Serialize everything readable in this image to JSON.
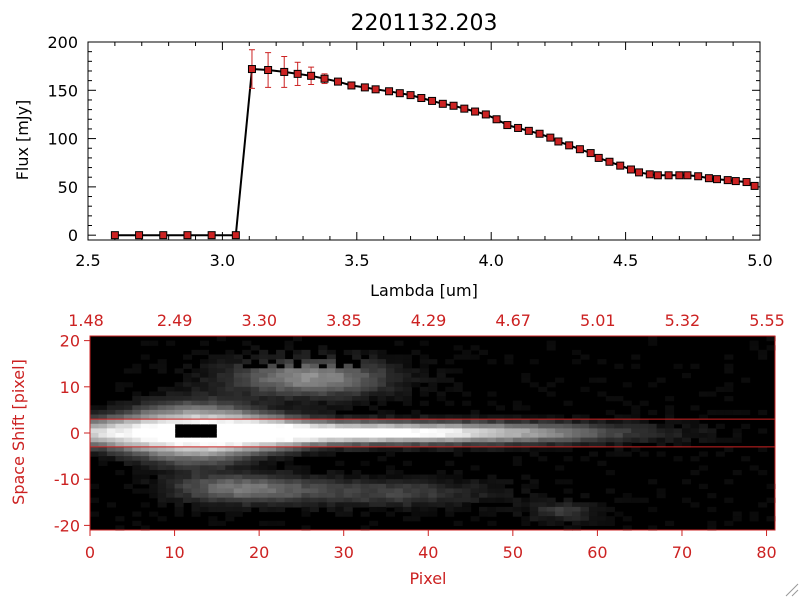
{
  "chart_data": [
    {
      "type": "line",
      "title": "2201132.203",
      "xlabel": "Lambda [um]",
      "ylabel": "Flux [mJy]",
      "xlim": [
        2.5,
        5.0
      ],
      "ylim": [
        -5,
        200
      ],
      "xticks": [
        "2.5",
        "3.0",
        "3.5",
        "4.0",
        "4.5",
        "5.0"
      ],
      "yticks": [
        "0",
        "50",
        "100",
        "150",
        "200"
      ],
      "line_color": "#000000",
      "marker_color": "#cc2222",
      "series": [
        {
          "x": [
            2.6,
            2.69,
            2.78,
            2.87,
            2.96,
            3.05,
            3.11,
            3.17,
            3.23,
            3.28,
            3.33,
            3.38,
            3.43,
            3.48,
            3.53,
            3.57,
            3.62,
            3.66,
            3.7,
            3.74,
            3.78,
            3.82,
            3.86,
            3.9,
            3.94,
            3.98,
            4.02,
            4.06,
            4.1,
            4.14,
            4.18,
            4.22,
            4.25,
            4.29,
            4.33,
            4.37,
            4.4,
            4.44,
            4.48,
            4.52,
            4.55,
            4.59,
            4.62,
            4.66,
            4.7,
            4.73,
            4.77,
            4.81,
            4.84,
            4.88,
            4.91,
            4.95,
            4.98
          ],
          "y": [
            0,
            0,
            0,
            0,
            0,
            0,
            172,
            171,
            169,
            167,
            165,
            162,
            159,
            155,
            153,
            151,
            149,
            147,
            145,
            142,
            139,
            136,
            134,
            131,
            128,
            125,
            120,
            114,
            111,
            108,
            105,
            101,
            97,
            93,
            89,
            85,
            80,
            76,
            72,
            68,
            65,
            63,
            62,
            62,
            62,
            62,
            61,
            59,
            58,
            57,
            56,
            55,
            51
          ],
          "errors": [
            0,
            0,
            0,
            0,
            0,
            0,
            20,
            18,
            16,
            12,
            9,
            5,
            3,
            3,
            3,
            3,
            3,
            3,
            3,
            3,
            3,
            3,
            3,
            3,
            3,
            3,
            3,
            3,
            3,
            3,
            3,
            3,
            3,
            3,
            3,
            3,
            3,
            3,
            3,
            3,
            3,
            3,
            3,
            3,
            3,
            3,
            3,
            3,
            3,
            3,
            3,
            3,
            3
          ]
        }
      ]
    },
    {
      "type": "heatmap",
      "xlabel": "Pixel",
      "ylabel": "Space Shift [pixel]",
      "xlim": [
        0,
        81
      ],
      "ylim": [
        -21,
        21
      ],
      "xticks": [
        "0",
        "10",
        "20",
        "30",
        "40",
        "50",
        "60",
        "70",
        "80"
      ],
      "yticks": [
        "-20",
        "-10",
        "0",
        "10",
        "20"
      ],
      "top_ticks": [
        "1.48",
        "2.49",
        "3.30",
        "3.85",
        "4.29",
        "4.67",
        "5.01",
        "5.32",
        "5.55"
      ],
      "axis_color": "#cc2222",
      "colormap": "grayscale",
      "extraction_rows": [
        -3,
        3
      ]
    }
  ]
}
